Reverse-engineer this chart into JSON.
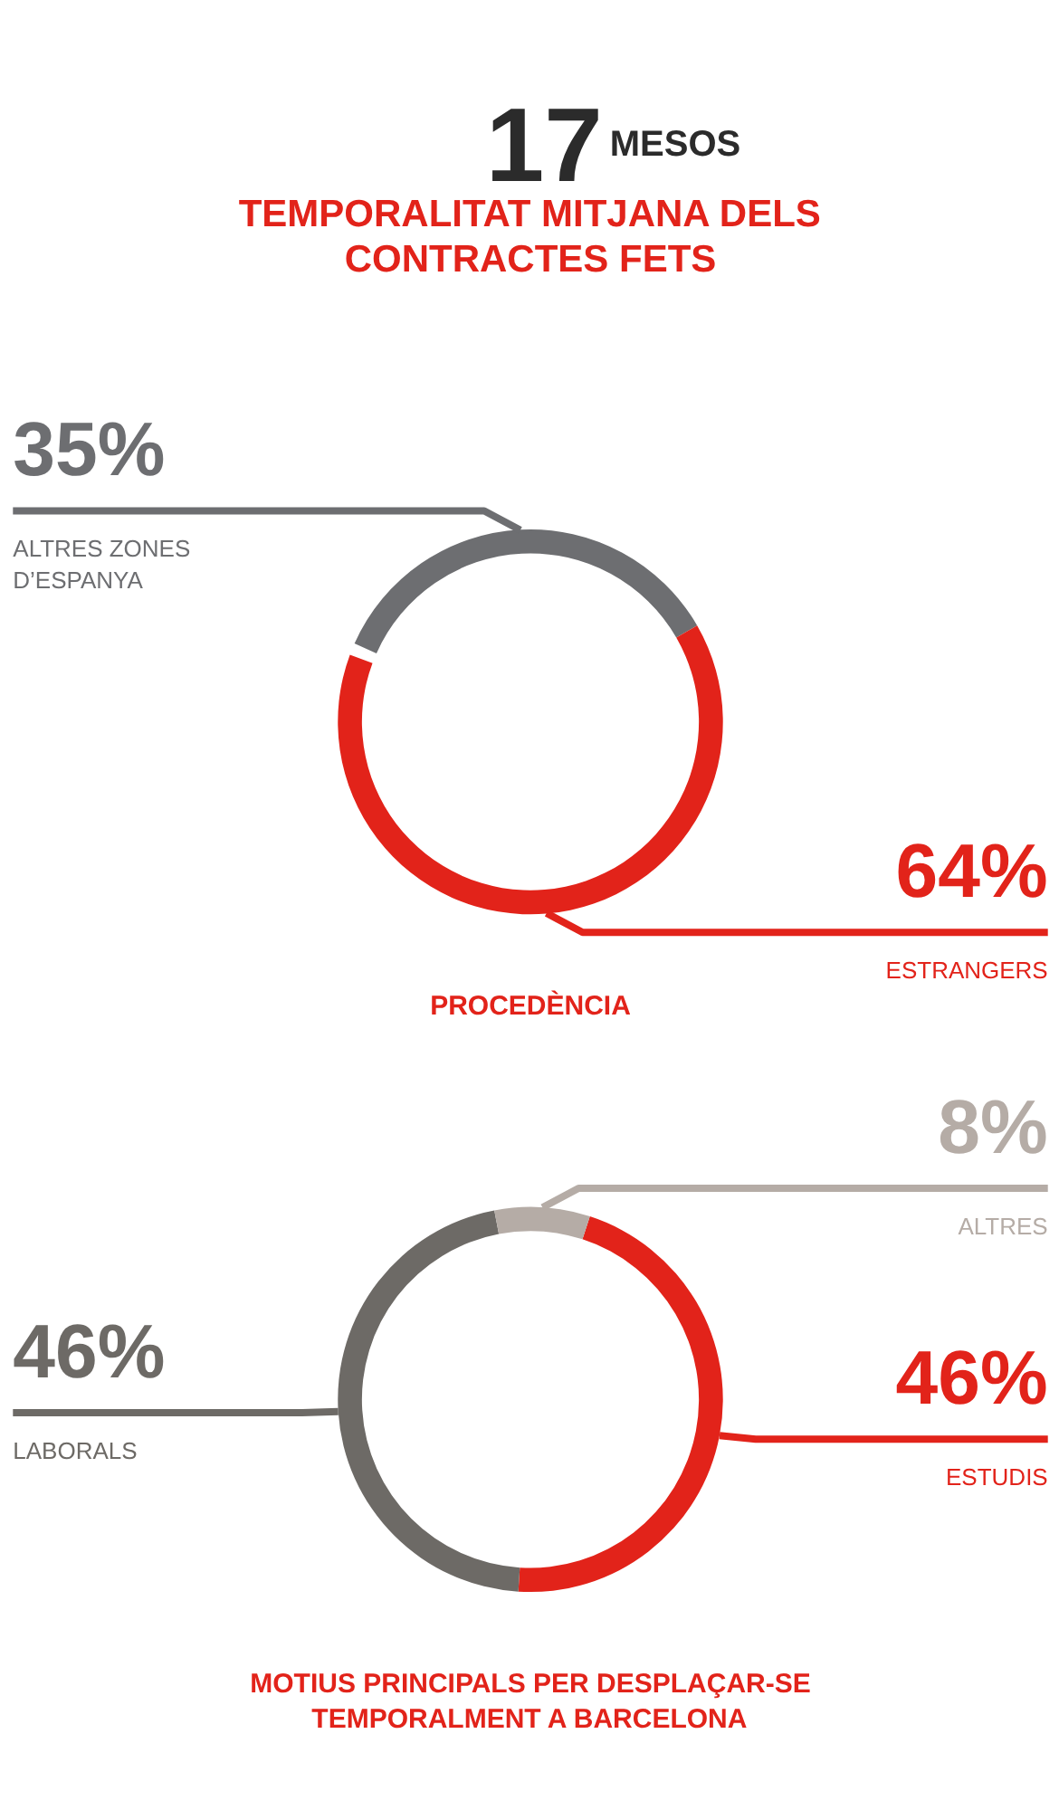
{
  "chart_data": [
    {
      "type": "other",
      "title": "TEMPORALITAT MITJANA DELS CONTRACTES FETS",
      "annotations": [
        "17",
        "MESOS"
      ]
    },
    {
      "type": "donut",
      "title": "PROCEDÈNCIA",
      "categories": [
        "ALTRES ZONES D’ESPANYA",
        "ESTRANGERS"
      ],
      "values": [
        35,
        64
      ],
      "colors": [
        "#6d6e71",
        "#e2231a"
      ],
      "value_labels": [
        "35%",
        "64%"
      ]
    },
    {
      "type": "donut",
      "title": "MOTIUS PRINCIPALS PER DESPLAÇAR-SE TEMPORALMENT A BARCELONA",
      "categories": [
        "ESTUDIS",
        "LABORALS",
        "ALTRES"
      ],
      "values": [
        46,
        46,
        8
      ],
      "colors": [
        "#e2231a",
        "#6d6a66",
        "#b5aca6"
      ],
      "value_labels": [
        "46%",
        "46%",
        "8%"
      ]
    }
  ]
}
